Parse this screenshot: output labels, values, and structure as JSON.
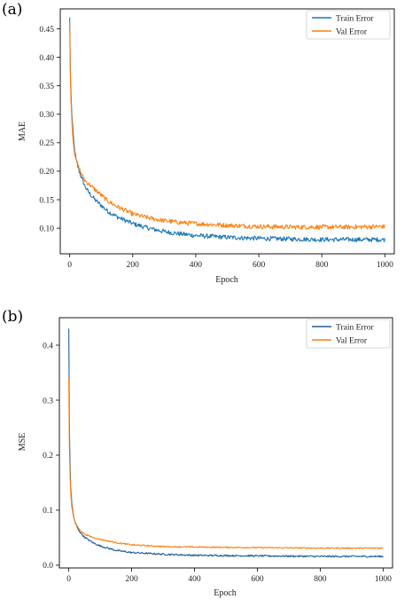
{
  "chart_data": [
    {
      "type": "line",
      "panel_label": "(a)",
      "title": "",
      "xlabel": "Epoch",
      "ylabel": "MAE",
      "xlim": [
        -30,
        1030
      ],
      "ylim": [
        0.055,
        0.485
      ],
      "xticks": [
        0,
        200,
        400,
        600,
        800,
        1000
      ],
      "yticks": [
        0.1,
        0.15,
        0.2,
        0.25,
        0.3,
        0.35,
        0.4,
        0.45
      ],
      "ytick_labels": [
        "0.10",
        "0.15",
        "0.20",
        "0.25",
        "0.30",
        "0.35",
        "0.40",
        "0.45"
      ],
      "grid": false,
      "legend_position": "top-right",
      "series": [
        {
          "name": "Train Error",
          "color": "#1f77b4",
          "x": [
            0,
            2,
            5,
            10,
            15,
            20,
            30,
            40,
            50,
            60,
            80,
            100,
            120,
            150,
            200,
            250,
            300,
            350,
            400,
            500,
            600,
            700,
            800,
            900,
            1000
          ],
          "y": [
            0.47,
            0.38,
            0.32,
            0.27,
            0.24,
            0.22,
            0.2,
            0.185,
            0.172,
            0.163,
            0.15,
            0.14,
            0.13,
            0.12,
            0.108,
            0.1,
            0.094,
            0.09,
            0.087,
            0.084,
            0.082,
            0.081,
            0.08,
            0.08,
            0.08
          ],
          "noise": 0.004
        },
        {
          "name": "Val Error",
          "color": "#ff7f0e",
          "x": [
            0,
            2,
            5,
            10,
            15,
            20,
            30,
            40,
            50,
            60,
            80,
            100,
            120,
            150,
            200,
            250,
            300,
            350,
            400,
            500,
            600,
            700,
            800,
            900,
            1000
          ],
          "y": [
            0.46,
            0.37,
            0.31,
            0.26,
            0.235,
            0.22,
            0.205,
            0.192,
            0.183,
            0.178,
            0.168,
            0.158,
            0.148,
            0.138,
            0.125,
            0.118,
            0.113,
            0.11,
            0.108,
            0.105,
            0.103,
            0.102,
            0.102,
            0.102,
            0.103
          ],
          "noise": 0.004
        }
      ]
    },
    {
      "type": "line",
      "panel_label": "(b)",
      "title": "",
      "xlabel": "Epoch",
      "ylabel": "MSE",
      "xlim": [
        -30,
        1030
      ],
      "ylim": [
        -0.005,
        0.45
      ],
      "xticks": [
        0,
        200,
        400,
        600,
        800,
        1000
      ],
      "yticks": [
        0.0,
        0.1,
        0.2,
        0.3,
        0.4
      ],
      "ytick_labels": [
        "0.0",
        "0.1",
        "0.2",
        "0.3",
        "0.4"
      ],
      "grid": false,
      "legend_position": "top-right",
      "series": [
        {
          "name": "Train Error",
          "color": "#1f5f96",
          "x": [
            0,
            2,
            5,
            10,
            15,
            20,
            30,
            40,
            50,
            60,
            80,
            100,
            150,
            200,
            300,
            400,
            600,
            800,
            1000
          ],
          "y": [
            0.43,
            0.25,
            0.15,
            0.11,
            0.09,
            0.077,
            0.065,
            0.057,
            0.051,
            0.047,
            0.04,
            0.035,
            0.027,
            0.023,
            0.02,
            0.018,
            0.017,
            0.016,
            0.016
          ],
          "noise": 0.0015
        },
        {
          "name": "Val Error",
          "color": "#ff7f0e",
          "x": [
            0,
            2,
            5,
            10,
            15,
            20,
            30,
            40,
            50,
            60,
            80,
            100,
            150,
            200,
            300,
            400,
            600,
            800,
            1000
          ],
          "y": [
            0.34,
            0.21,
            0.14,
            0.105,
            0.088,
            0.078,
            0.068,
            0.061,
            0.057,
            0.054,
            0.05,
            0.047,
            0.041,
            0.037,
            0.034,
            0.033,
            0.032,
            0.031,
            0.031
          ],
          "noise": 0.0012
        }
      ]
    }
  ]
}
